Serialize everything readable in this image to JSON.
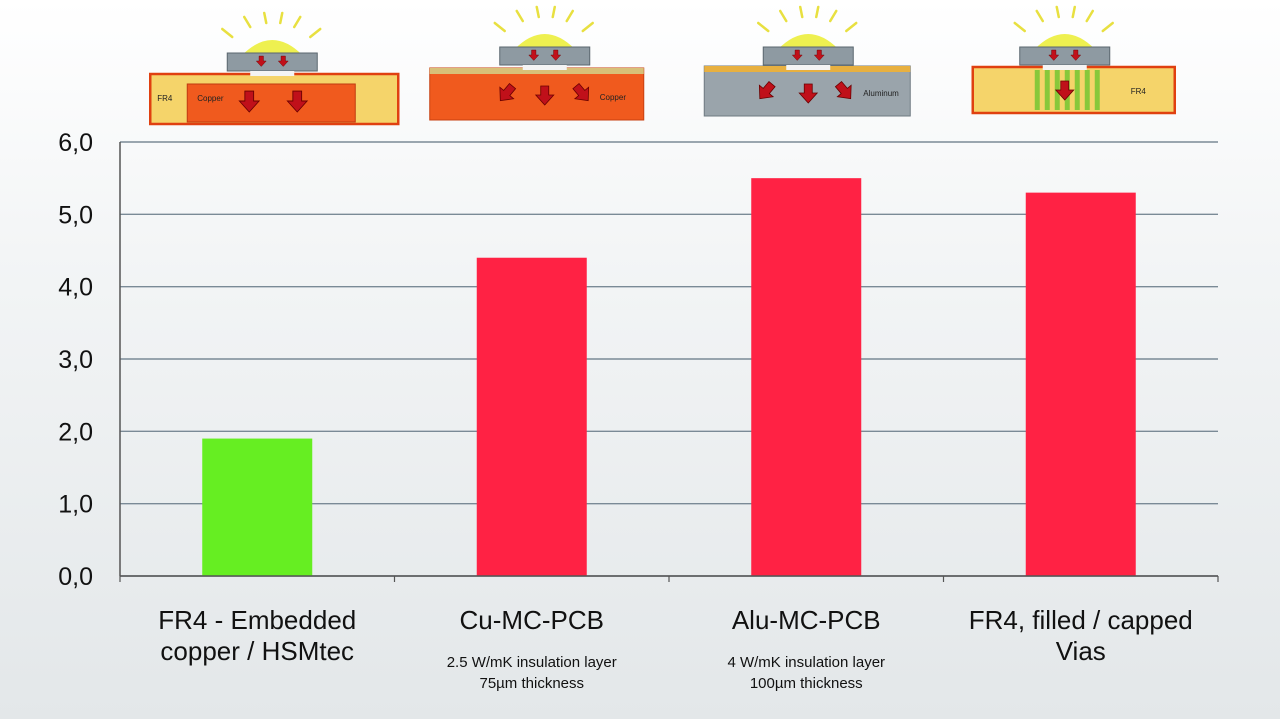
{
  "chart_data": {
    "type": "bar",
    "categories": [
      {
        "lines": [
          "FR4 - Embedded",
          "copper / HSMtec"
        ],
        "sub": [],
        "material": "Copper",
        "color": "#66ee22"
      },
      {
        "lines": [
          "Cu-MC-PCB"
        ],
        "sub": [
          "2.5 W/mK insulation layer",
          "75µm thickness"
        ],
        "material": "Copper",
        "color": "#ff2244"
      },
      {
        "lines": [
          "Alu-MC-PCB"
        ],
        "sub": [
          "4 W/mK insulation layer",
          "100µm thickness"
        ],
        "material": "Aluminum",
        "color": "#ff2244"
      },
      {
        "lines": [
          "FR4, filled / capped",
          "Vias"
        ],
        "sub": [],
        "material": "FR4",
        "color": "#ff2244"
      }
    ],
    "values": [
      1.9,
      4.4,
      5.5,
      5.3
    ],
    "ylim": [
      0,
      6
    ],
    "yticks": [
      "0,0",
      "1,0",
      "2,0",
      "3,0",
      "4,0",
      "5,0",
      "6,0"
    ],
    "grid": true,
    "colors": {
      "highlight": "#66ee22",
      "bar": "#ff2244",
      "grid": "#7a8a96",
      "axis": "#555555"
    }
  },
  "diagrams": {
    "first_label": "FR4"
  }
}
